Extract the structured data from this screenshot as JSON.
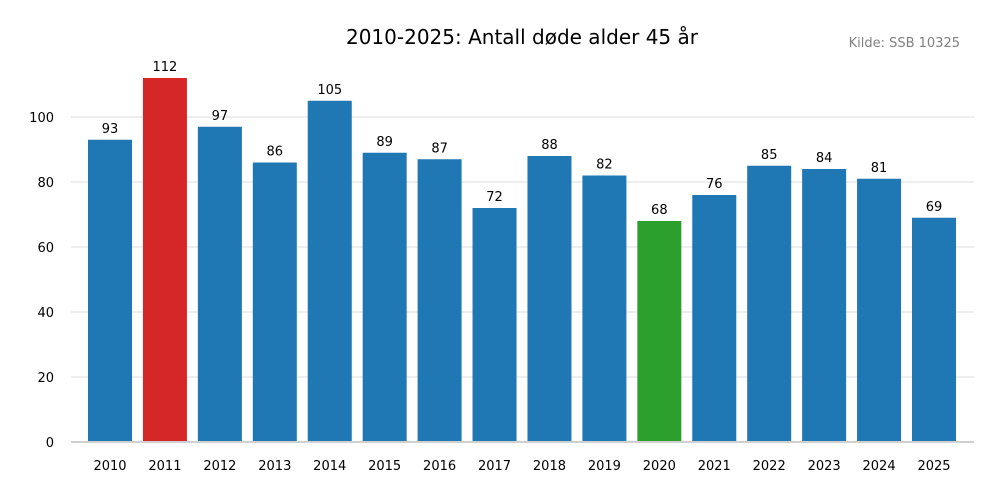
{
  "chart_data": {
    "type": "bar",
    "title": "2010-2025: Antall døde alder 45 år",
    "source": "Kilde: SSB 10325",
    "xlabel": "",
    "ylabel": "",
    "categories": [
      "2010",
      "2011",
      "2012",
      "2013",
      "2014",
      "2015",
      "2016",
      "2017",
      "2018",
      "2019",
      "2020",
      "2021",
      "2022",
      "2023",
      "2024",
      "2025"
    ],
    "values": [
      93,
      112,
      97,
      86,
      105,
      89,
      87,
      72,
      88,
      82,
      68,
      76,
      85,
      84,
      81,
      69
    ],
    "highlights": {
      "max": "2011",
      "min": "2020"
    },
    "colors": {
      "default": "#1f77b4",
      "max": "#d62728",
      "min": "#2ca02c",
      "grid": "#e8e8e8",
      "axis": "#d0d0d0",
      "source": "#808080"
    },
    "ylim": [
      0,
      112
    ],
    "yticks": [
      0,
      20,
      40,
      60,
      80,
      100
    ],
    "grid": true,
    "legend": "none",
    "data_labels": true
  }
}
